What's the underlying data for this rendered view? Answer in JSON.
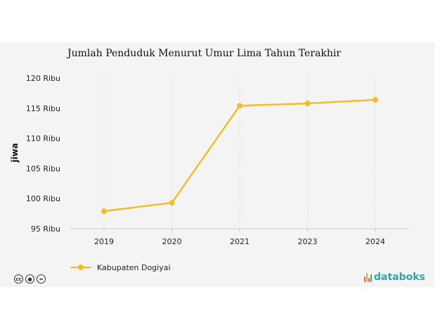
{
  "chart_data": {
    "type": "line",
    "title": "Jumlah Penduduk Menurut Umur Lima Tahun Terakhir",
    "xlabel": "",
    "ylabel": "jiwa",
    "categories": [
      "2019",
      "2020",
      "2021",
      "2023",
      "2024"
    ],
    "series": [
      {
        "name": "Kabupaten Dogiyai",
        "values": [
          97900,
          99300,
          115400,
          115800,
          116400
        ]
      }
    ],
    "ylim": [
      95000,
      120000
    ],
    "yticks": [
      95000,
      100000,
      105000,
      110000,
      115000,
      120000
    ],
    "ytick_labels": [
      "95 Ribu",
      "100 Ribu",
      "105 Ribu",
      "110 Ribu",
      "115 Ribu",
      "120 Ribu"
    ],
    "grid": "vertical dotted",
    "legend_position": "bottom-left"
  },
  "colors": {
    "series": "#f2bd2b",
    "grid": "#d8d8d8",
    "axis": "#cccccc",
    "background": "#f4f4f4",
    "brand_mark": [
      "#e45a4a",
      "#f2a33a",
      "#2fa6a0"
    ],
    "brand_text": "#2fa6a0"
  },
  "footer": {
    "license_icons": [
      "cc-icon",
      "by-icon",
      "nd-icon"
    ],
    "brand": "databoks"
  }
}
